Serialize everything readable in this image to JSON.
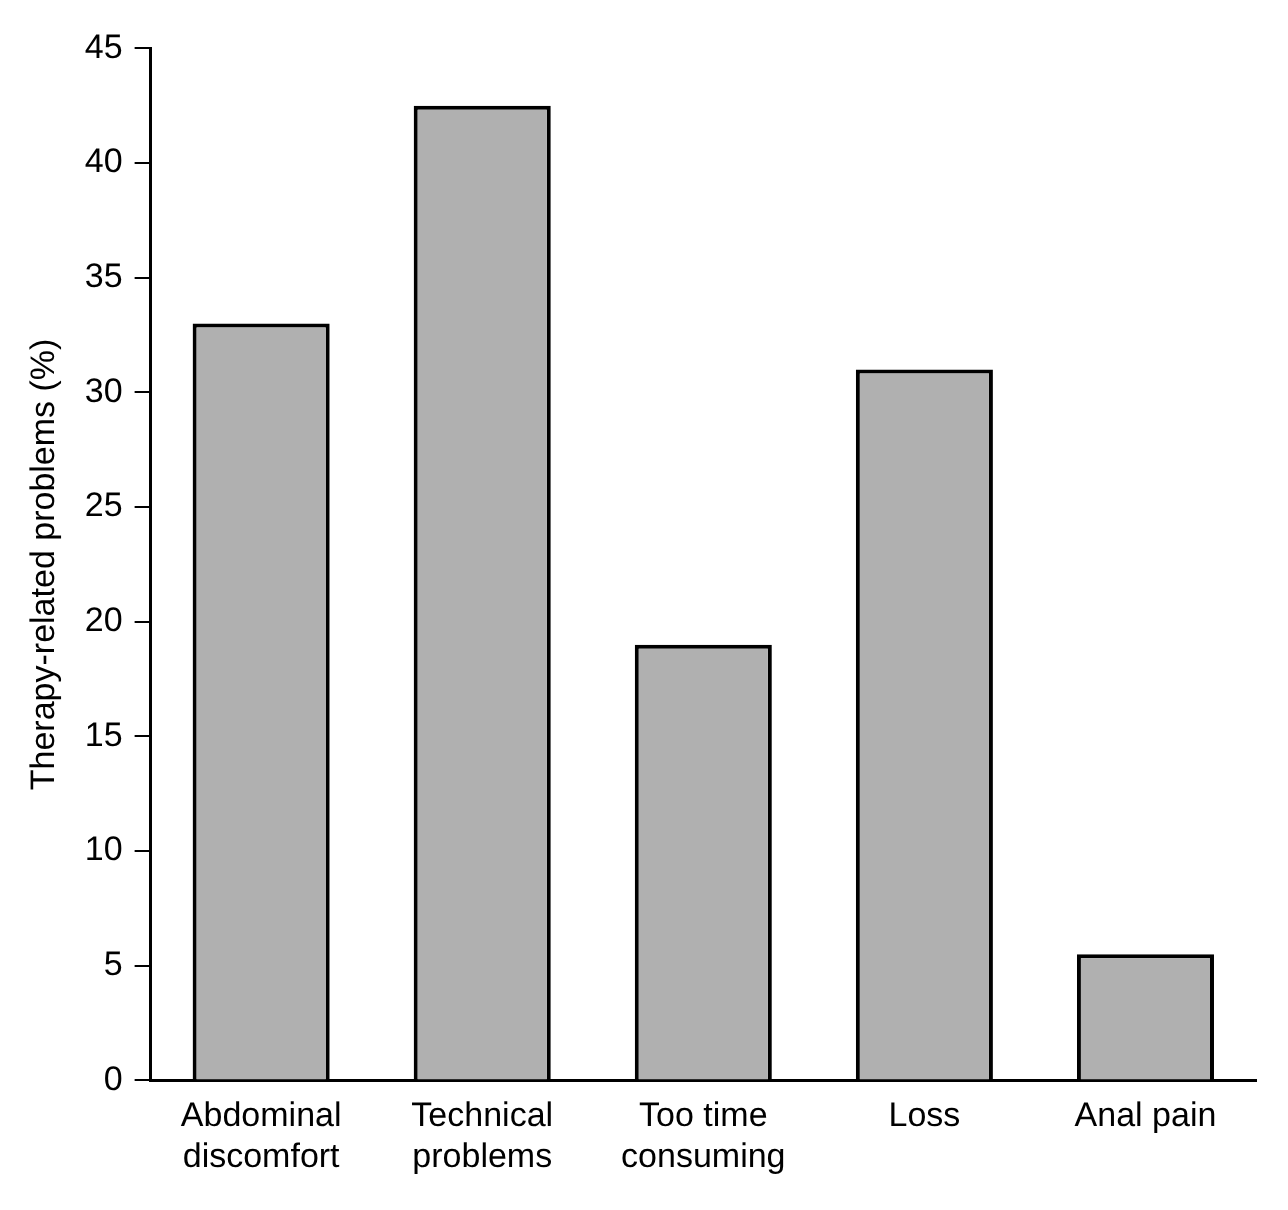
{
  "chart_data": {
    "type": "bar",
    "ylabel": "Therapy-related problems (%)",
    "categories": [
      "Abdominal discomfort",
      "Technical problems",
      "Too time consuming",
      "Loss",
      "Anal pain"
    ],
    "values": [
      33,
      42.5,
      19,
      31,
      5.5
    ],
    "color": "#b0b0b0",
    "ylim": [
      0,
      45
    ],
    "yticks": [
      0,
      5,
      10,
      15,
      20,
      25,
      30,
      35,
      40,
      45
    ],
    "grid": false,
    "legend": false
  }
}
